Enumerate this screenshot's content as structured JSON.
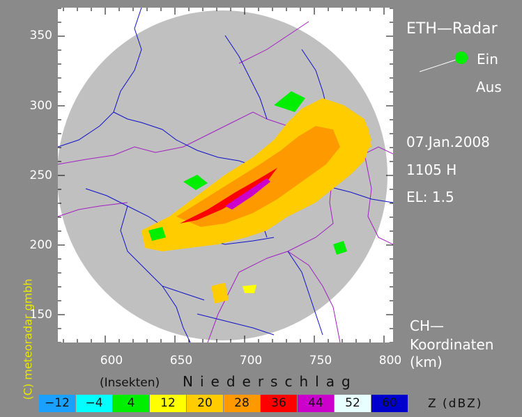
{
  "title": "ETH—Radar",
  "status": {
    "on": "Ein",
    "off": "Aus",
    "on_color": "#00ee00"
  },
  "date": "07.Jan.2008",
  "time": "1105 H",
  "elevation": "EL: 1.5",
  "coords_label": {
    "line1": "CH—",
    "line2": "Koordinaten",
    "line3": "(km)"
  },
  "copyright": "(C) meteoradar gmbh",
  "y_ticks": [
    "350",
    "300",
    "250",
    "200",
    "150"
  ],
  "x_ticks": [
    "600",
    "650",
    "700",
    "750",
    "800"
  ],
  "legend_caption_insects": "(Insekten)",
  "legend_caption_precip": "Niederschlag",
  "legend_unit": "Z  (dBZ)",
  "legend": [
    {
      "label": "−12",
      "color": "#1aa0ff"
    },
    {
      "label": "−4",
      "color": "#00ffff"
    },
    {
      "label": "4",
      "color": "#00ee00"
    },
    {
      "label": "12",
      "color": "#ffff00"
    },
    {
      "label": "20",
      "color": "#ffcc00"
    },
    {
      "label": "28",
      "color": "#ff9900"
    },
    {
      "label": "36",
      "color": "#ff0000"
    },
    {
      "label": "44",
      "color": "#cc00cc"
    },
    {
      "label": "52",
      "color": "#e8ffff"
    },
    {
      "label": "60",
      "color": "#0000cc"
    }
  ]
}
